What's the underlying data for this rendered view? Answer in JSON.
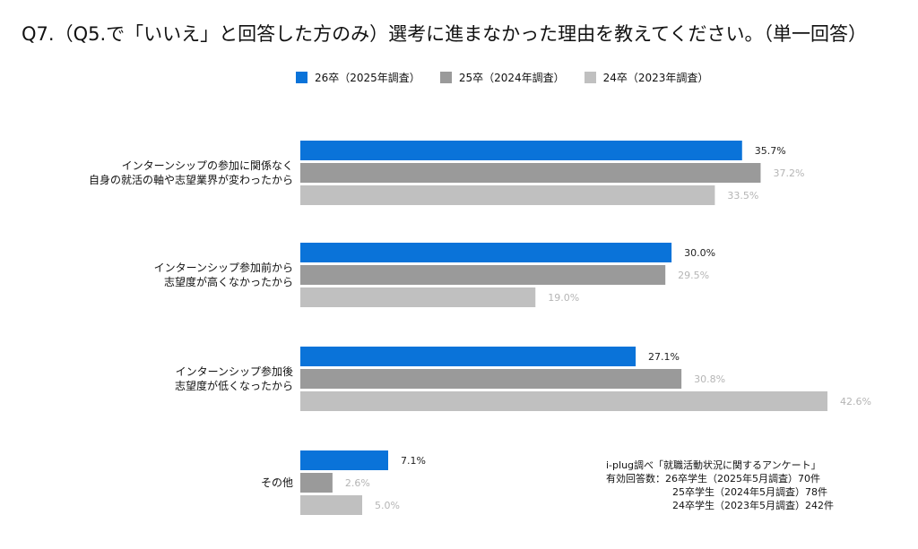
{
  "title": "Q7.（Q5.で「いいえ」と回答した方のみ）選考に進まなかった理由を教えてください。（単一回答）",
  "note": {
    "line1": "i-plug調べ「就職活動状況に関するアンケート」",
    "line2": "有効回答数：26卒学生（2025年5月調査）70件",
    "line3": "25卒学生（2024年5月調査）78件",
    "line4": "24卒学生（2023年5月調査）242件"
  },
  "chart_data": {
    "type": "bar",
    "orientation": "horizontal",
    "categories": [
      [
        "インターンシップの参加に関係なく",
        "自身の就活の軸や志望業界が変わったから"
      ],
      [
        "インターンシップ参加前から",
        "志望度が高くなかったから"
      ],
      [
        "インターンシップ参加後",
        "志望度が低くなったから"
      ],
      [
        "その他"
      ]
    ],
    "series": [
      {
        "name": "26卒（2025年調査）",
        "color": "#0a73d9",
        "label_color": "#222222",
        "values": [
          35.7,
          30.0,
          27.1,
          7.1
        ]
      },
      {
        "name": "25卒（2024年調査）",
        "color": "#9a9a9a",
        "label_color": "#b5b5b5",
        "values": [
          37.2,
          29.5,
          30.8,
          2.6
        ]
      },
      {
        "name": "24卒（2023年調査）",
        "color": "#c0c0c0",
        "label_color": "#b5b5b5",
        "values": [
          33.5,
          19.0,
          42.6,
          5.0
        ]
      }
    ],
    "value_suffix": "%",
    "xlim": [
      0,
      42.6
    ],
    "legend_position": "top"
  }
}
